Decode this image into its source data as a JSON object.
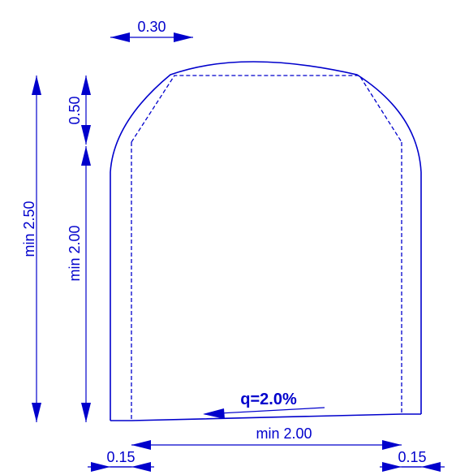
{
  "dimensions": {
    "top_width": "0.30",
    "crown_height": "0.50",
    "total_height": "min 2.50",
    "wall_height": "min 2.00",
    "inner_width": "min 2.00",
    "left_wall_thickness": "0.15",
    "right_wall_thickness": "0.15"
  },
  "slope_label": "q=2.0%",
  "colors": {
    "line": "#0000cc",
    "background": "#ffffff"
  }
}
